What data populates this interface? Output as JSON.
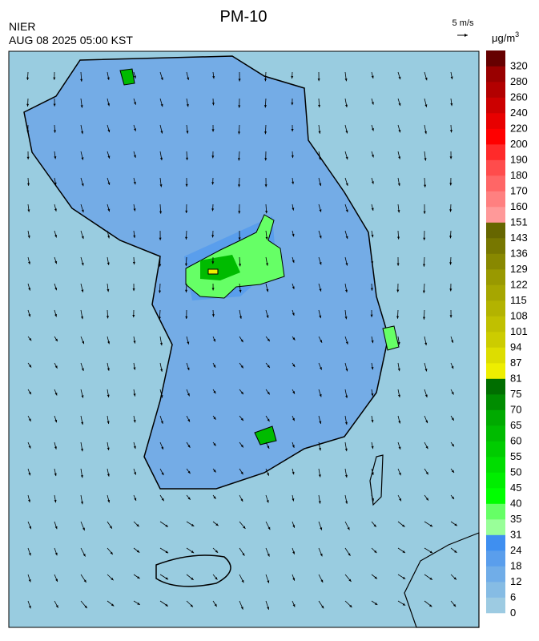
{
  "title": "PM-10",
  "agency": "NIER",
  "timestamp": "AUG 08 2025 05:00 KST",
  "wind_scale": "5 m/s",
  "unit": {
    "base": "μg/m",
    "sup": "3"
  },
  "colorbar": {
    "labels": [
      0,
      6,
      12,
      18,
      24,
      31,
      35,
      40,
      45,
      50,
      55,
      60,
      65,
      70,
      75,
      81,
      87,
      94,
      101,
      108,
      115,
      122,
      129,
      136,
      143,
      151,
      160,
      170,
      180,
      190,
      200,
      220,
      240,
      260,
      280,
      320
    ],
    "colors": [
      "#9dcbe2",
      "#86bce4",
      "#70ade8",
      "#5a9eec",
      "#3f8ff0",
      "#99ff99",
      "#66ff66",
      "#00ff00",
      "#00ee00",
      "#00dd00",
      "#00cc00",
      "#00bb00",
      "#00aa00",
      "#008c00",
      "#006e00",
      "#eeee00",
      "#dddd00",
      "#cccc00",
      "#c0c000",
      "#b3b300",
      "#a6a600",
      "#999900",
      "#888800",
      "#777700",
      "#666600",
      "#ff9999",
      "#ff8080",
      "#ff6666",
      "#ff4c4c",
      "#ff2a2a",
      "#ff0000",
      "#e80000",
      "#cc0000",
      "#b20000",
      "#990000",
      "#660000"
    ]
  }
}
